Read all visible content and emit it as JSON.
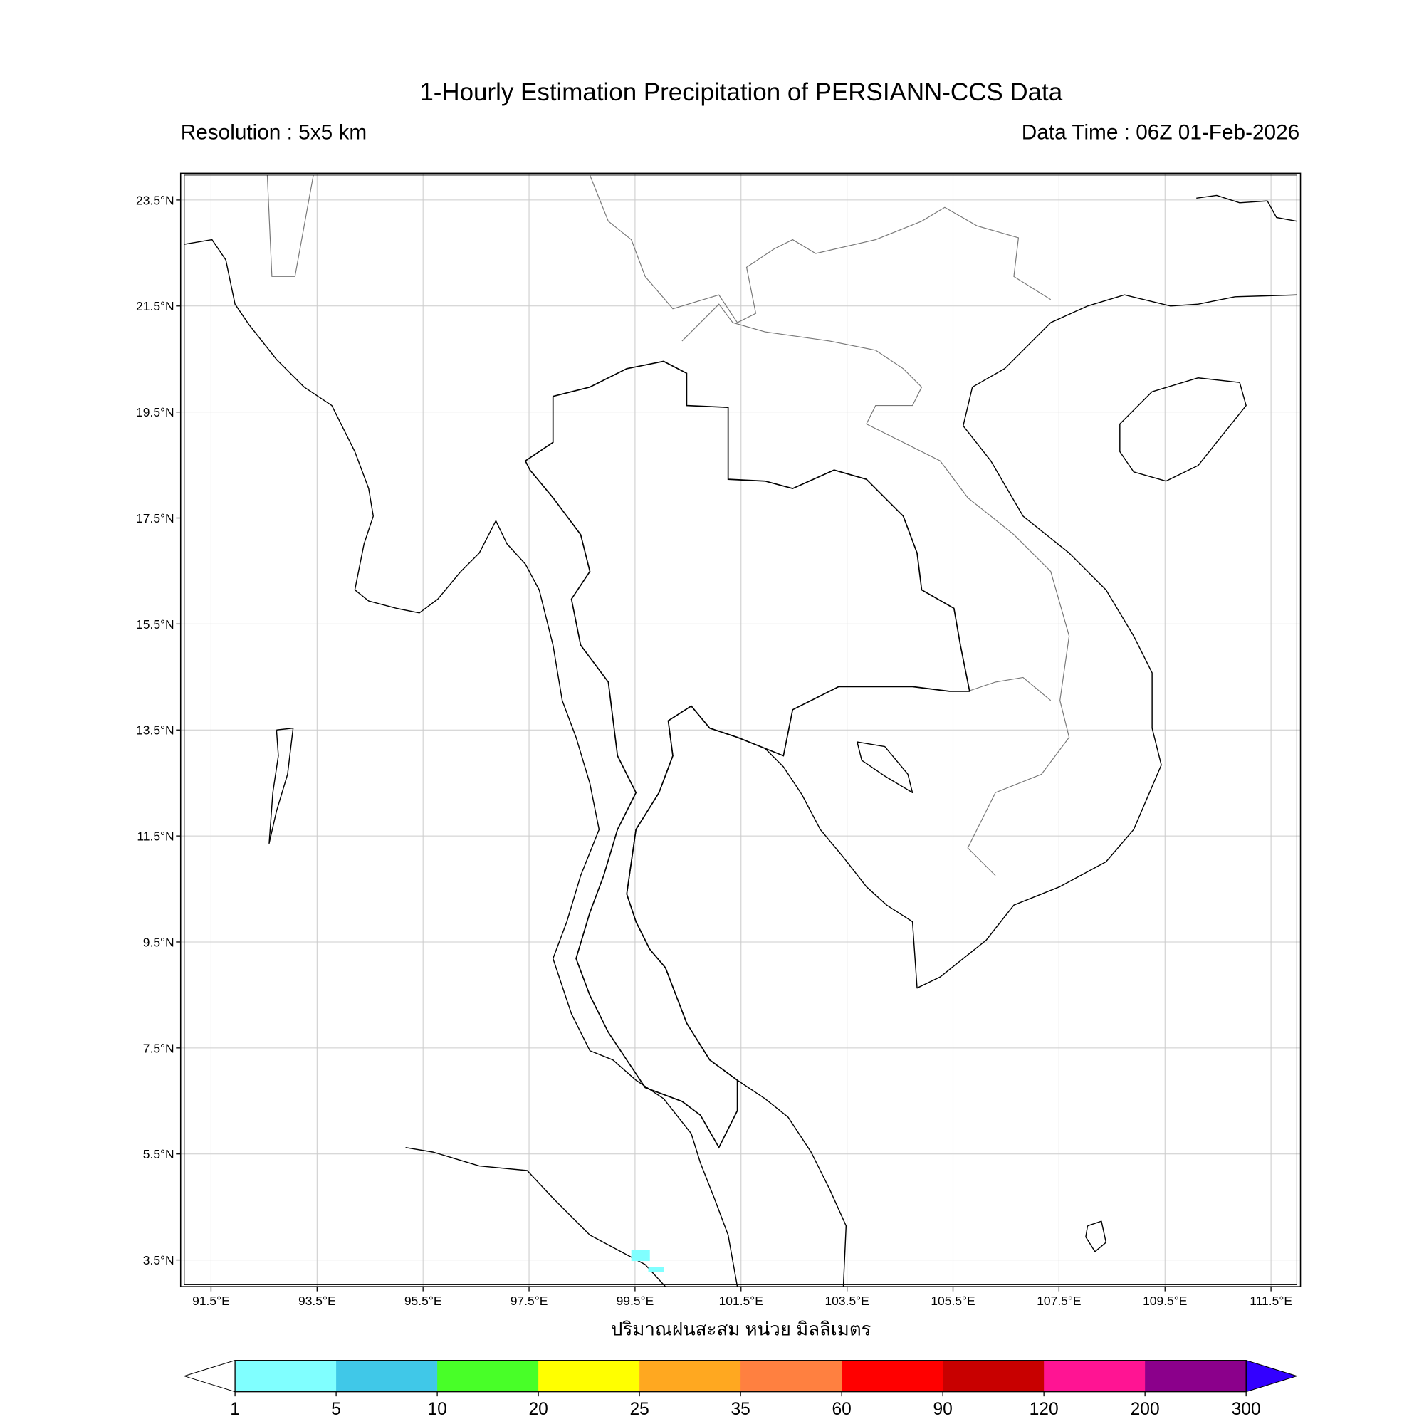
{
  "header": {
    "title": "1-Hourly Estimation Precipitation of PERSIANN-CCS Data",
    "resolution": "Resolution : 5x5 km",
    "data_time": "Data Time : 06Z 01-Feb-2026"
  },
  "map": {
    "projection": "plate-carree",
    "extent": {
      "lon_min": 90.93,
      "lon_max": 112.06,
      "lat_min": 3.0,
      "lat_max": 24.0
    },
    "grid": true,
    "x_ticks": [
      {
        "lon": 91.5,
        "label": "91.5°E"
      },
      {
        "lon": 93.5,
        "label": "93.5°E"
      },
      {
        "lon": 95.5,
        "label": "95.5°E"
      },
      {
        "lon": 97.5,
        "label": "97.5°E"
      },
      {
        "lon": 99.5,
        "label": "99.5°E"
      },
      {
        "lon": 101.5,
        "label": "101.5°E"
      },
      {
        "lon": 103.5,
        "label": "103.5°E"
      },
      {
        "lon": 105.5,
        "label": "105.5°E"
      },
      {
        "lon": 107.5,
        "label": "107.5°E"
      },
      {
        "lon": 109.5,
        "label": "109.5°E"
      },
      {
        "lon": 111.5,
        "label": "111.5°E"
      }
    ],
    "y_ticks": [
      {
        "lat": 23.5,
        "label": "23.5°N"
      },
      {
        "lat": 21.5,
        "label": "21.5°N"
      },
      {
        "lat": 19.5,
        "label": "19.5°N"
      },
      {
        "lat": 17.5,
        "label": "17.5°N"
      },
      {
        "lat": 15.5,
        "label": "15.5°N"
      },
      {
        "lat": 13.5,
        "label": "13.5°N"
      },
      {
        "lat": 11.5,
        "label": "11.5°N"
      },
      {
        "lat": 9.5,
        "label": "9.5°N"
      },
      {
        "lat": 7.5,
        "label": "7.5°N"
      },
      {
        "lat": 5.5,
        "label": "5.5°N"
      },
      {
        "lat": 3.5,
        "label": "3.5°N"
      }
    ],
    "rain_cells": [
      {
        "lon_min": 99.43,
        "lon_max": 99.78,
        "lat_min": 3.48,
        "lat_max": 3.69,
        "class": "1-5",
        "color": "#80ffff"
      },
      {
        "lon_min": 99.75,
        "lon_max": 100.04,
        "lat_min": 3.27,
        "lat_max": 3.37,
        "class": "1-5",
        "color": "#80ffff"
      }
    ]
  },
  "colorbar": {
    "label": "ปริมาณฝนสะสม หน่วย มิลลิเมตร",
    "levels": [
      "1",
      "5",
      "10",
      "20",
      "25",
      "35",
      "60",
      "90",
      "120",
      "200",
      "300"
    ],
    "colors": [
      "#80ffff",
      "#40c8e8",
      "#48ff28",
      "#ffff00",
      "#ffa820",
      "#ff8040",
      "#ff0000",
      "#c80000",
      "#ff1493",
      "#8b008b"
    ],
    "under_color": "#ffffff",
    "over_color": "#3300ff"
  }
}
